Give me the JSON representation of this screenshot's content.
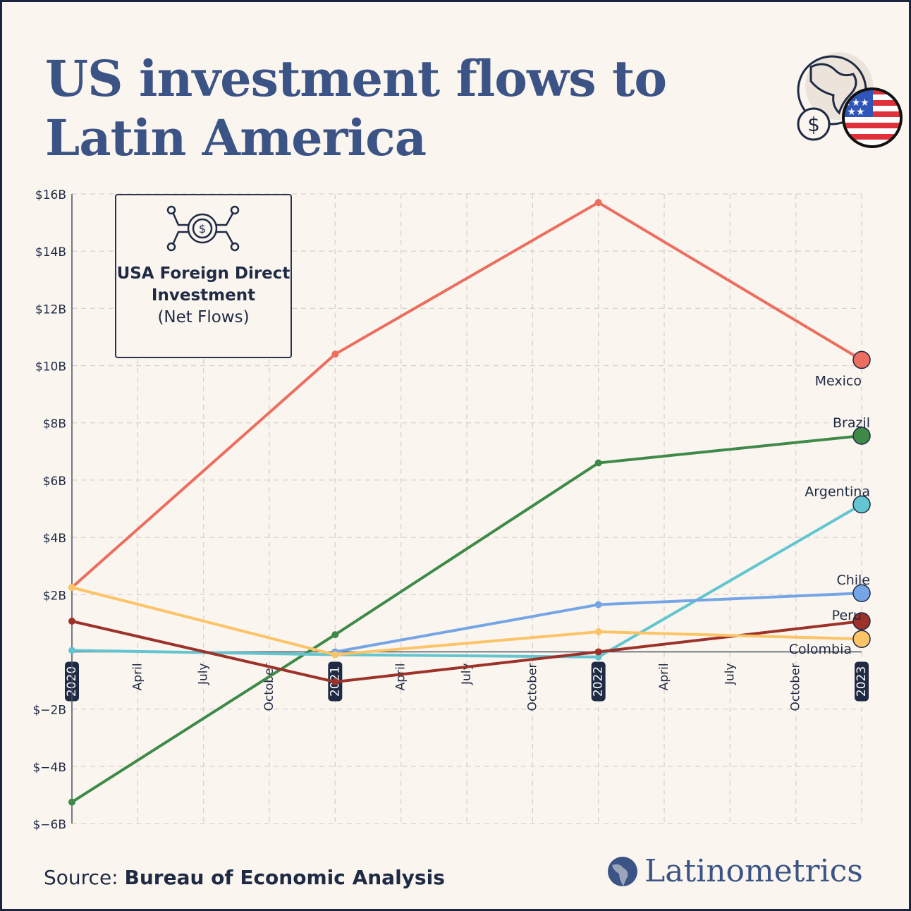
{
  "title": "US investment flows to Latin America",
  "legend_box": {
    "title": "USA Foreign Direct Investment",
    "subtitle": "(Net Flows)",
    "icon": "money-network-icon"
  },
  "source": {
    "label": "Source:",
    "value": "Bureau of Economic Analysis"
  },
  "brand": "Latinometrics",
  "header_icon": "globe-dollar-us-flag-icon",
  "chart_data": {
    "type": "line",
    "x": [
      "2020",
      "2021",
      "2022",
      "2023"
    ],
    "x_minor_ticks": [
      "April",
      "July",
      "October"
    ],
    "ylim": [
      -6,
      16
    ],
    "yticks": [
      16,
      14,
      12,
      10,
      8,
      6,
      4,
      2,
      -2,
      -4,
      -6
    ],
    "ytick_labels": [
      "$16B",
      "$14B",
      "$12B",
      "$10B",
      "$8B",
      "$6B",
      "$4B",
      "$2B",
      "$−2B",
      "$−4B",
      "$−6B"
    ],
    "grid": true,
    "unit": "$B",
    "series": [
      {
        "name": "Mexico",
        "color": "#ec6e5e",
        "values": [
          2.25,
          10.4,
          15.7,
          10.2
        ]
      },
      {
        "name": "Brazil",
        "color": "#3f8a48",
        "values": [
          -5.25,
          0.6,
          6.6,
          7.55
        ]
      },
      {
        "name": "Argentina",
        "color": "#63c5cf",
        "values": [
          0.05,
          -0.1,
          -0.18,
          5.15
        ]
      },
      {
        "name": "Chile",
        "color": "#75a5e5",
        "values": [
          null,
          0.0,
          1.65,
          2.05
        ]
      },
      {
        "name": "Peru",
        "color": "#9c3229",
        "values": [
          1.07,
          -1.05,
          0.0,
          1.07
        ]
      },
      {
        "name": "Colombia",
        "color": "#fcc467",
        "values": [
          2.25,
          -0.1,
          0.7,
          0.45
        ]
      }
    ]
  }
}
